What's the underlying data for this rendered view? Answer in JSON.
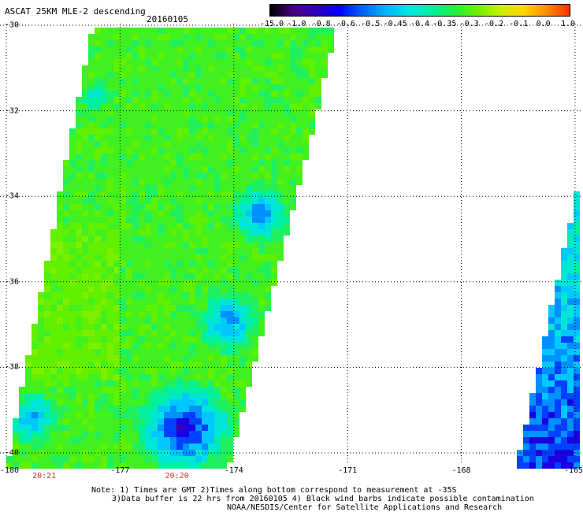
{
  "header": {
    "title": "ASCAT 25KM MLE-2 descending",
    "date": "20160105"
  },
  "colorbar": {
    "labels": [
      "-15.0",
      "-1.0",
      "-0.8",
      "-0.6",
      "-0.5",
      "-0.45",
      "-0.4",
      "-0.35",
      "-0.3",
      "-0.2",
      "-0.1",
      "0.0",
      "1.0"
    ],
    "colors": [
      "#000000",
      "#4b0082",
      "#2e00b8",
      "#0000ff",
      "#0064ff",
      "#00b4ff",
      "#00e6e6",
      "#00f0a0",
      "#20f040",
      "#6cf000",
      "#c8f000",
      "#ffd700",
      "#ff8c00",
      "#ff3000"
    ]
  },
  "axes": {
    "lat_labels": [
      "-30",
      "-32",
      "-34",
      "-36",
      "-38",
      "-40"
    ],
    "lon_labels": [
      "-180",
      "-177",
      "-174",
      "-171",
      "-168",
      "-165"
    ]
  },
  "times": [
    {
      "label": "20:21",
      "lon": -179.0
    },
    {
      "label": "20:20",
      "lon": -175.5
    }
  ],
  "notes": {
    "line1": "Note: 1) Times are GMT 2)Times along bottom correspond to measurement at -35S",
    "line2": "3)Data buffer is 22 hrs from 20160105 4) Black wind barbs indicate possible contamination",
    "line3": "NOAA/NESDIS/Center for Satellite Applications and Research"
  },
  "palette": {
    "background": "#ffffff",
    "grid": "#000000",
    "time_label": "#c0392b"
  }
}
